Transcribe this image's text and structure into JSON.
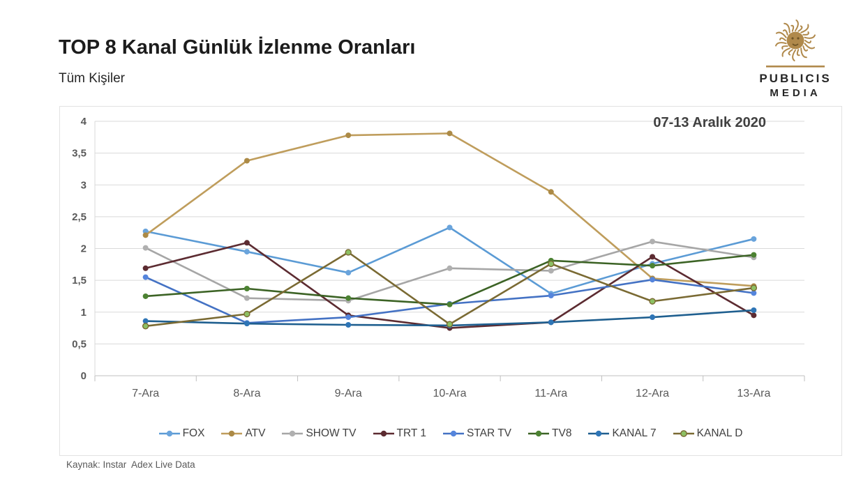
{
  "header": {
    "title": "TOP 8 Kanal Günlük İzlenme Oranları",
    "subtitle": "Tüm Kişiler"
  },
  "logo": {
    "line1": "PUBLICIS",
    "line2": "MEDIA",
    "gold": "#b0894b",
    "text_color": "#262626"
  },
  "chart_data": {
    "type": "line",
    "title": "TOP 8 Kanal Günlük İzlenme Oranları",
    "period_label": "07-13 Aralık 2020",
    "categories": [
      "7-Ara",
      "8-Ara",
      "9-Ara",
      "10-Ara",
      "11-Ara",
      "12-Ara",
      "13-Ara"
    ],
    "y_tick_labels": [
      "4",
      "3,5",
      "3",
      "2,5",
      "2",
      "1,5",
      "1",
      "0,5",
      "0"
    ],
    "ylim": [
      0,
      4
    ],
    "y_step": 0.5,
    "grid": true,
    "legend_position": "bottom",
    "gridline_color": "#d9d9d9",
    "axis_line_color": "#bfbfbf",
    "series": [
      {
        "name": "FOX",
        "color": "#5b9bd5",
        "marker_color": "#6aa4dc",
        "values": [
          2.27,
          1.95,
          1.62,
          2.33,
          1.29,
          1.76,
          2.15
        ]
      },
      {
        "name": "ATV",
        "color": "#bf9d5c",
        "marker_color": "#ac8a46",
        "values": [
          2.21,
          3.38,
          3.78,
          3.81,
          2.89,
          1.53,
          1.41
        ]
      },
      {
        "name": "SHOW TV",
        "color": "#a6a6a6",
        "marker_color": "#b0b0b0",
        "values": [
          2.01,
          1.22,
          1.18,
          1.69,
          1.65,
          2.11,
          1.86
        ]
      },
      {
        "name": "TRT 1",
        "color": "#5c2b31",
        "marker_color": "#5c2b31",
        "values": [
          1.69,
          2.09,
          0.95,
          0.75,
          0.84,
          1.87,
          0.95
        ]
      },
      {
        "name": "STAR TV",
        "color": "#4472c4",
        "marker_color": "#5585dc",
        "values": [
          1.55,
          0.83,
          0.92,
          1.13,
          1.26,
          1.51,
          1.3
        ]
      },
      {
        "name": "TV8",
        "color": "#3c6325",
        "marker_color": "#4c8232",
        "values": [
          1.25,
          1.37,
          1.22,
          1.12,
          1.81,
          1.73,
          1.9
        ]
      },
      {
        "name": "KANAL 7",
        "color": "#1f5f8f",
        "marker_color": "#2e75b6",
        "values": [
          0.86,
          0.82,
          0.8,
          0.79,
          0.84,
          0.92,
          1.03
        ]
      },
      {
        "name": "KANAL D",
        "color": "#7a6a33",
        "marker_color": "#8dc063",
        "marker_stroke": "#7a6a33",
        "values": [
          0.78,
          0.97,
          1.94,
          0.81,
          1.76,
          1.17,
          1.38
        ]
      }
    ]
  },
  "footer": {
    "source": "Kaynak: Instar  Adex Live Data"
  }
}
